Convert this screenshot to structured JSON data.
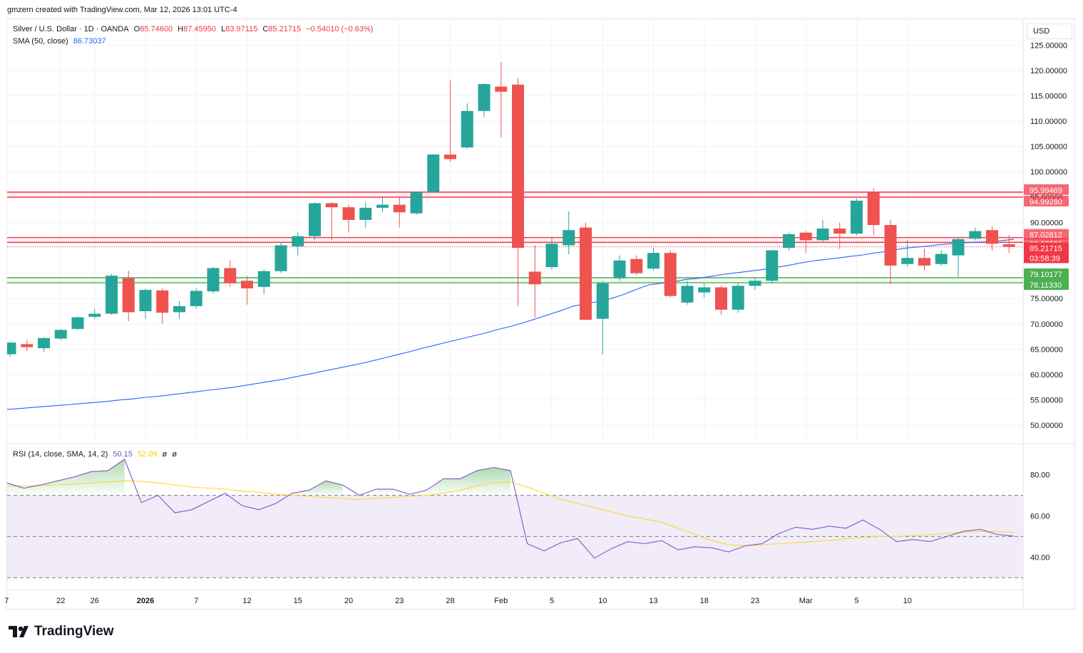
{
  "header_note": "gmzern created with TradingView.com, Mar 12, 2026 13:01 UTC-4",
  "legend": {
    "symbol": "Silver / U.S. Dollar · 1D · OANDA",
    "o_label": "O",
    "o_value": "85.74600",
    "h_label": "H",
    "h_value": "87.45950",
    "l_label": "L",
    "l_value": "83.97115",
    "c_label": "C",
    "c_value": "85.21715",
    "change": "−0.54010 (−0.63%)",
    "sma_label": "SMA (50, close)",
    "sma_value": "86.73037",
    "rsi_label": "RSI (14, close, SMA, 14, 2)",
    "rsi_value": "50.15",
    "rsi_sma_value": "52.09",
    "rsi_extra1": "ø",
    "rsi_extra2": "ø"
  },
  "currency": "USD",
  "brand": "TradingView",
  "colors": {
    "up": "#26a69a",
    "down": "#ef5350",
    "sma": "#2962ff",
    "rsi": "#7e57c2",
    "rsi_sma": "#fdd835",
    "resistance": "#f23645",
    "support": "#4caf50",
    "rsi_band": "#ede7f6",
    "price_label": "#f23645"
  },
  "chart_data": [
    {
      "type": "candlestick",
      "title": "Silver / U.S. Dollar · 1D · OANDA",
      "y_ticks": [
        50,
        55,
        60,
        65,
        70,
        75,
        80,
        85,
        90,
        95,
        100,
        105,
        110,
        115,
        120,
        125
      ],
      "x_tick_labels": [
        "7",
        "22",
        "26",
        "2026",
        "7",
        "12",
        "15",
        "20",
        "23",
        "28",
        "Feb",
        "5",
        "10",
        "13",
        "18",
        "23",
        "Mar",
        "5",
        "10"
      ],
      "candles": [
        [
          64.0,
          66.5,
          63.5,
          66.3
        ],
        [
          66.0,
          66.8,
          64.6,
          65.4
        ],
        [
          65.2,
          67.4,
          64.5,
          67.2
        ],
        [
          67.1,
          69.0,
          66.8,
          68.8
        ],
        [
          69.0,
          71.5,
          68.8,
          71.3
        ],
        [
          71.4,
          73.0,
          71.0,
          72.0
        ],
        [
          72.0,
          79.8,
          71.8,
          79.5
        ],
        [
          79.0,
          80.5,
          70.5,
          72.3
        ],
        [
          72.5,
          77.0,
          71.0,
          76.7
        ],
        [
          76.6,
          77.0,
          70.0,
          72.2
        ],
        [
          72.3,
          74.5,
          71.0,
          73.5
        ],
        [
          73.5,
          77.0,
          73.0,
          76.5
        ],
        [
          76.4,
          81.3,
          76.0,
          81.0
        ],
        [
          81.0,
          82.5,
          77.3,
          78.0
        ],
        [
          78.5,
          79.5,
          73.8,
          77.0
        ],
        [
          77.3,
          80.8,
          75.8,
          80.4
        ],
        [
          80.4,
          86.0,
          80.1,
          85.5
        ],
        [
          85.3,
          88.0,
          83.5,
          87.3
        ],
        [
          87.3,
          94.0,
          86.5,
          93.8
        ],
        [
          93.8,
          94.0,
          86.5,
          93.0
        ],
        [
          93.0,
          93.5,
          88.0,
          90.5
        ],
        [
          90.5,
          94.0,
          89.0,
          92.9
        ],
        [
          92.9,
          95.0,
          92.0,
          93.5
        ],
        [
          93.5,
          95.0,
          89.0,
          92.0
        ],
        [
          91.8,
          96.0,
          91.5,
          96.0
        ],
        [
          96.0,
          103.5,
          95.8,
          103.4
        ],
        [
          103.4,
          118.0,
          102.0,
          102.5
        ],
        [
          104.8,
          113.5,
          104.5,
          112.0
        ],
        [
          112.0,
          117.5,
          110.8,
          117.3
        ],
        [
          116.8,
          121.6,
          106.8,
          115.8
        ],
        [
          117.2,
          118.5,
          73.5,
          85.0
        ],
        [
          80.3,
          85.5,
          71.3,
          77.8
        ],
        [
          81.2,
          87.0,
          80.7,
          85.8
        ],
        [
          85.5,
          92.2,
          83.7,
          88.5
        ],
        [
          89.0,
          90.0,
          70.8,
          70.8
        ],
        [
          71.0,
          78.5,
          64.0,
          78.0
        ],
        [
          79.0,
          83.5,
          78.5,
          82.5
        ],
        [
          82.8,
          83.5,
          79.6,
          80.0
        ],
        [
          80.9,
          85.0,
          80.5,
          84.0
        ],
        [
          84.0,
          84.5,
          75.2,
          75.5
        ],
        [
          74.2,
          78.5,
          73.8,
          77.5
        ],
        [
          76.2,
          78.0,
          75.2,
          77.2
        ],
        [
          77.2,
          77.5,
          71.8,
          72.8
        ],
        [
          72.8,
          78.0,
          72.2,
          77.5
        ],
        [
          77.5,
          79.0,
          76.7,
          78.5
        ],
        [
          78.5,
          84.5,
          78.0,
          84.5
        ],
        [
          85.0,
          88.0,
          84.5,
          87.7
        ],
        [
          88.0,
          88.3,
          84.0,
          86.5
        ],
        [
          86.5,
          90.5,
          86.0,
          88.8
        ],
        [
          88.8,
          90.0,
          84.8,
          87.8
        ],
        [
          87.8,
          94.7,
          87.5,
          94.3
        ],
        [
          96.0,
          96.8,
          87.5,
          89.5
        ],
        [
          89.5,
          90.5,
          77.8,
          81.5
        ],
        [
          81.8,
          86.5,
          81.3,
          83.0
        ],
        [
          83.0,
          84.8,
          80.5,
          81.5
        ],
        [
          81.8,
          84.5,
          81.4,
          83.8
        ],
        [
          83.5,
          87.2,
          79.3,
          86.7
        ],
        [
          86.8,
          89.0,
          86.5,
          88.3
        ],
        [
          88.5,
          89.2,
          84.5,
          85.8
        ],
        [
          85.7,
          87.5,
          84.0,
          85.2
        ]
      ],
      "sma_50": [
        53.1,
        53.3,
        53.5,
        53.7,
        53.9,
        54.1,
        54.3,
        54.5,
        54.7,
        55.0,
        55.2,
        55.5,
        55.7,
        56.0,
        56.3,
        56.6,
        56.9,
        57.2,
        57.5,
        57.9,
        58.3,
        58.7,
        59.1,
        59.6,
        60.1,
        60.6,
        61.1,
        61.6,
        62.1,
        62.7,
        63.3,
        63.9,
        64.5,
        65.2,
        65.8,
        66.4,
        67.0,
        67.6,
        68.2,
        68.9,
        69.5,
        70.2,
        71.0,
        71.8,
        72.6,
        73.5,
        74.0,
        74.4,
        75.0,
        75.8,
        76.8,
        77.7,
        78.0,
        78.3,
        78.8,
        79.0,
        79.4,
        79.8,
        80.1,
        80.4,
        80.7,
        81.1,
        81.5,
        82.0,
        82.4,
        82.7,
        83.0,
        83.3,
        83.6,
        84.0,
        84.3,
        84.8,
        85.1,
        85.3,
        85.6,
        85.8,
        86.0,
        86.1,
        86.2,
        86.4,
        86.7
      ],
      "levels": {
        "resistance_upper": [
          95.99469,
          94.9928
        ],
        "resistance_lower": [
          87.02812,
          86.07331
        ],
        "support": [
          79.10177,
          78.1133
        ],
        "last_close": 85.21715
      },
      "level_labels": [
        "95.99469",
        "94.99280",
        "87.02812",
        "86.07331",
        "85.21715",
        "03:58:39",
        "79.10177",
        "78.11330"
      ]
    },
    {
      "type": "line",
      "title": "RSI (14, close, SMA, 14, 2)",
      "y_ticks": [
        40,
        60,
        80
      ],
      "bands": {
        "upper": 70,
        "middle": 50,
        "lower": 30
      },
      "rsi": [
        76,
        73.5,
        75,
        77,
        79,
        81.5,
        82,
        87.5,
        66.5,
        70,
        61.5,
        63,
        67,
        71,
        65,
        63,
        66,
        71,
        72.5,
        77,
        75,
        70,
        73,
        73,
        70.5,
        72.5,
        78,
        78,
        82,
        83.5,
        82,
        46.5,
        43,
        47,
        49,
        39.5,
        44,
        47.5,
        46.5,
        48,
        43.5,
        45,
        44.5,
        42.5,
        45.5,
        46.5,
        51.5,
        54.5,
        53.5,
        55,
        54,
        58,
        53.5,
        47.5,
        48.5,
        47.5,
        50,
        52.5,
        53.5,
        51,
        50.2
      ],
      "rsi_sma": [
        74.5,
        74.5,
        74.8,
        75,
        75.5,
        76,
        76.5,
        77,
        76.8,
        76,
        75,
        74,
        73.5,
        73,
        72,
        71.5,
        70.5,
        70,
        69.5,
        69,
        68.5,
        68,
        68.5,
        69,
        69.5,
        70,
        71,
        72.5,
        74.5,
        76,
        76.5,
        74,
        71,
        68,
        66,
        64,
        62,
        60,
        58.5,
        57,
        54,
        51,
        48,
        46,
        45.5,
        46,
        46.5,
        47,
        47.5,
        48,
        49,
        49.5,
        50,
        50,
        50.5,
        51,
        51.5,
        52,
        52.5,
        52.3,
        52.1
      ]
    }
  ]
}
